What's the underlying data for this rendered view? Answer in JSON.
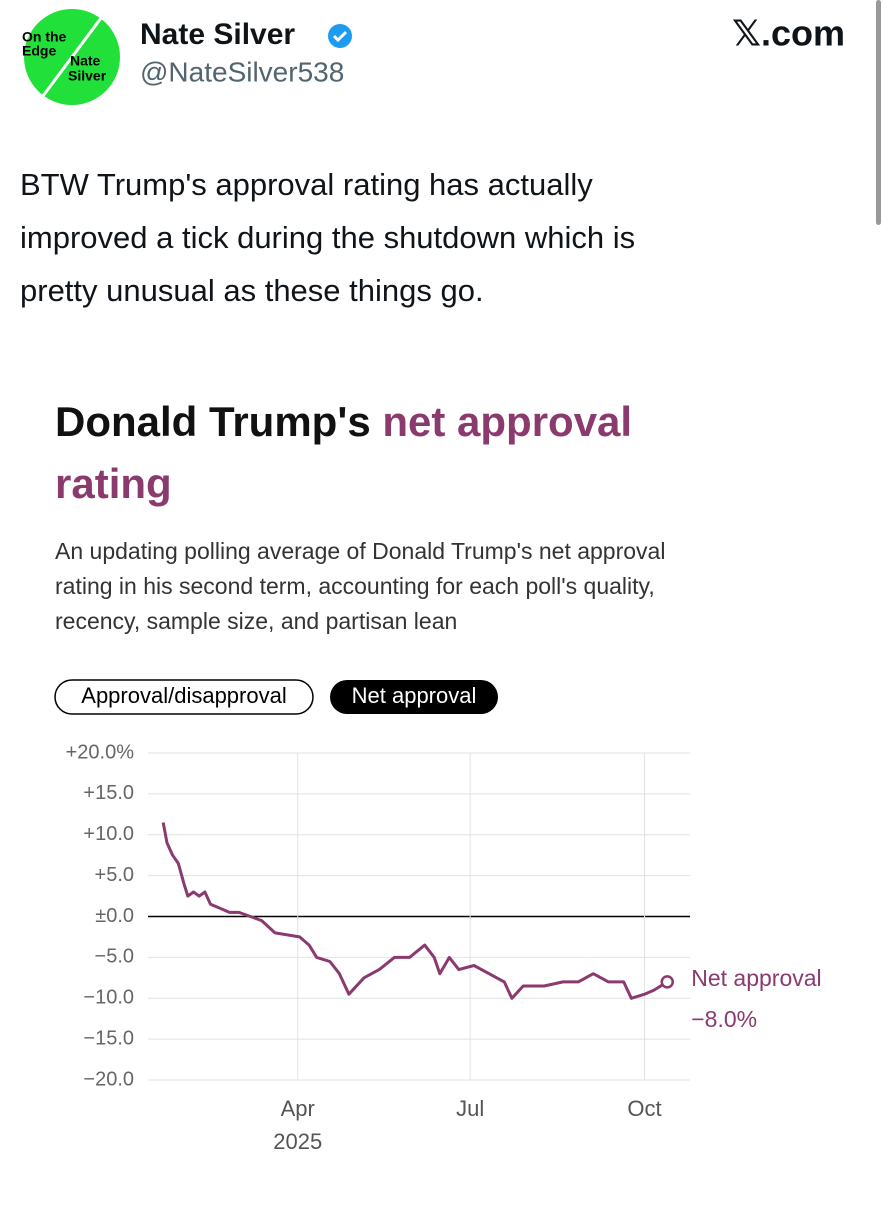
{
  "tweet": {
    "avatar_lines": [
      "On the",
      "Edge",
      "Nate",
      "Silver"
    ],
    "name": "Nate Silver",
    "handle": "@NateSilver538",
    "site": "𝕏.com",
    "text_lines": [
      "BTW Trump's approval rating has actually",
      "improved a tick during the shutdown which is",
      "pretty unusual as these things go."
    ]
  },
  "toggles": [
    "Approval/disapproval",
    "Net approval"
  ],
  "chart_data": {
    "type": "line",
    "title_lines": [
      [
        "Donald Trump's ",
        "net approval"
      ],
      [
        "rating"
      ]
    ],
    "subtitle_lines": [
      "An updating polling average of Donald Trump's net approval",
      "rating in his second term, accounting for each poll's quality,",
      "recency, sample size, and partisan lean"
    ],
    "x": [
      20,
      22,
      25,
      28,
      31,
      33,
      36,
      39,
      42,
      45,
      50,
      55,
      60,
      72,
      79,
      92,
      97,
      101,
      108,
      113,
      118,
      126,
      134,
      142,
      150,
      158,
      163,
      166,
      171,
      176,
      184,
      192,
      200,
      204,
      210,
      221,
      231,
      239,
      247,
      255,
      263,
      267,
      274,
      279,
      286
    ],
    "series": [
      {
        "name": "Net approval",
        "color": "#8b3a6e",
        "values": [
          11.5,
          9,
          7.5,
          6.5,
          4,
          2.5,
          3,
          2.5,
          3,
          1.5,
          1,
          0.5,
          0.5,
          -0.5,
          -2,
          -2.5,
          -3.5,
          -5,
          -5.5,
          -7,
          -9.5,
          -7.5,
          -6.5,
          -5,
          -5,
          -3.5,
          -5,
          -7,
          -5,
          -6.5,
          -6,
          -7,
          -8,
          -10,
          -8.5,
          -8.5,
          -8,
          -8,
          -7,
          -8,
          -8,
          -10,
          -9.5,
          -9,
          -8
        ],
        "end_value_label": "−8.0%"
      }
    ],
    "xlim": [
      12,
      298
    ],
    "xticks": [
      {
        "value": 91,
        "label": "Apr"
      },
      {
        "value": 182,
        "label": "Jul"
      },
      {
        "value": 274,
        "label": "Oct"
      }
    ],
    "x_year_label": "2025",
    "ylim": [
      -20,
      20
    ],
    "yticks": [
      {
        "value": 20,
        "label": "+20.0%"
      },
      {
        "value": 15,
        "label": "+15.0"
      },
      {
        "value": 10,
        "label": "+10.0"
      },
      {
        "value": 5,
        "label": "+5.0"
      },
      {
        "value": 0,
        "label": "±0.0"
      },
      {
        "value": -5,
        "label": "−5.0"
      },
      {
        "value": -10,
        "label": "−10.0"
      },
      {
        "value": -15,
        "label": "−15.0"
      },
      {
        "value": -20,
        "label": "−20.0"
      }
    ],
    "grid": true,
    "zero_line": true,
    "accent_color": "#8b3a6e"
  }
}
